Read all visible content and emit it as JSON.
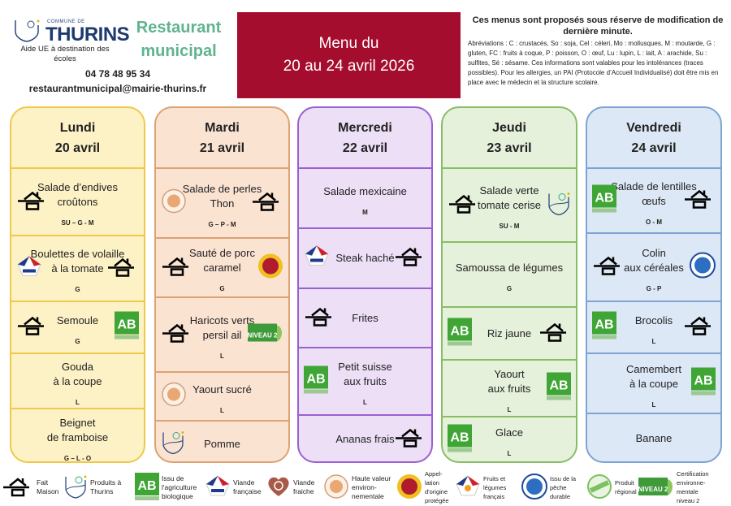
{
  "header": {
    "logo_small": "COMMUNE DE",
    "logo_name": "THURINS",
    "aide": "Aide UE à destination des écoles",
    "restaurant": "Restaurant municipal",
    "phone": "04 78 48 95 34",
    "email": "restaurantmunicipal@mairie-thurins.fr",
    "menu_line1": "Menu du",
    "menu_line2": "20 au 24 avril 2026",
    "notice_title": "Ces menus sont proposés sous réserve de modification de dernière minute.",
    "notice_body": "Abréviations : C : crustacés, So : soja, Cel : céleri, Mo : mollusques, M : moutarde, G : gluten, FC : fruits à coque, P : poisson, O : œuf, Lu : lupin, L : lait, A : arachide, Su : sulfites, Sé : sésame. Ces informations sont valables pour les intolérances (traces possibles). Pour les allergies, un PAI (Protocole d’Accueil Individualisé) doit être mis en place avec le médecin et la structure scolaire."
  },
  "colors": {
    "band": "#a50d2e",
    "restaurant": "#5fb48e",
    "lundi": "#fdf1c6",
    "mardi": "#fbe3d2",
    "mercredi": "#ecdff6",
    "jeudi": "#e6f1dc",
    "vendredi": "#dde8f6"
  },
  "days": [
    {
      "day": "Lundi",
      "date": "20 avril",
      "items": [
        {
          "name": "Salade d’endives\ncroûtons",
          "allergens": "SU – G - M",
          "icons": [
            {
              "type": "house",
              "side": "left"
            }
          ]
        },
        {
          "name": "Boulettes de volaille\nà la tomate",
          "allergens": "G",
          "icons": [
            {
              "type": "viande-francaise",
              "side": "left"
            },
            {
              "type": "house",
              "side": "right"
            }
          ]
        },
        {
          "name": "Semoule",
          "allergens": "G",
          "icons": [
            {
              "type": "house",
              "side": "left"
            },
            {
              "type": "ab",
              "side": "right"
            }
          ]
        },
        {
          "name": "Gouda\nà la coupe",
          "allergens": "L",
          "icons": []
        },
        {
          "name": "Beignet\nde framboise",
          "allergens": "G – L - O",
          "icons": []
        }
      ]
    },
    {
      "day": "Mardi",
      "date": "21 avril",
      "items": [
        {
          "name": "Salade de perles\nThon",
          "allergens": "G – P - M",
          "icons": [
            {
              "type": "hve",
              "side": "left"
            },
            {
              "type": "house",
              "side": "right"
            }
          ]
        },
        {
          "name": "Sauté de porc\ncaramel",
          "allergens": "G",
          "icons": [
            {
              "type": "house",
              "side": "left"
            },
            {
              "type": "aop",
              "side": "right"
            }
          ]
        },
        {
          "name": "Haricots verts\npersil ail",
          "allergens": "L",
          "icons": [
            {
              "type": "house",
              "side": "left"
            },
            {
              "type": "cert",
              "side": "right"
            }
          ]
        },
        {
          "name": "Yaourt sucré",
          "allergens": "L",
          "icons": [
            {
              "type": "hve",
              "side": "left"
            }
          ]
        },
        {
          "name": "Pomme",
          "allergens": "",
          "icons": [
            {
              "type": "thurins",
              "side": "left"
            }
          ]
        }
      ]
    },
    {
      "day": "Mercredi",
      "date": "22 avril",
      "items": [
        {
          "name": "Salade mexicaine",
          "allergens": "M",
          "icons": []
        },
        {
          "name": "Steak haché",
          "allergens": "",
          "icons": [
            {
              "type": "viande-francaise",
              "side": "left"
            },
            {
              "type": "house",
              "side": "right"
            }
          ]
        },
        {
          "name": "Frites",
          "allergens": "",
          "icons": [
            {
              "type": "house",
              "side": "left"
            }
          ]
        },
        {
          "name": "Petit suisse\naux fruits",
          "allergens": "L",
          "icons": [
            {
              "type": "ab",
              "side": "left"
            }
          ]
        },
        {
          "name": "Ananas frais",
          "allergens": "",
          "icons": [
            {
              "type": "house",
              "side": "right"
            }
          ]
        }
      ]
    },
    {
      "day": "Jeudi",
      "date": "23 avril",
      "items": [
        {
          "name": "Salade verte\ntomate cerise",
          "allergens": "SU - M",
          "icons": [
            {
              "type": "house",
              "side": "left"
            },
            {
              "type": "thurins",
              "side": "right"
            }
          ]
        },
        {
          "name": "Samoussa de légumes",
          "allergens": "G",
          "icons": []
        },
        {
          "name": "Riz jaune",
          "allergens": "",
          "icons": [
            {
              "type": "ab",
              "side": "left"
            },
            {
              "type": "house",
              "side": "right"
            }
          ]
        },
        {
          "name": "Yaourt\naux fruits",
          "allergens": "L",
          "icons": [
            {
              "type": "ab",
              "side": "right"
            }
          ]
        },
        {
          "name": "Glace",
          "allergens": "L",
          "icons": [
            {
              "type": "ab",
              "side": "left"
            }
          ]
        }
      ]
    },
    {
      "day": "Vendredi",
      "date": "24 avril",
      "items": [
        {
          "name": "Salade de lentilles\nœufs",
          "allergens": "O - M",
          "icons": [
            {
              "type": "ab",
              "side": "left"
            },
            {
              "type": "house",
              "side": "right"
            }
          ]
        },
        {
          "name": "Colin\naux céréales",
          "allergens": "G - P",
          "icons": [
            {
              "type": "house",
              "side": "left"
            },
            {
              "type": "peche",
              "side": "right"
            }
          ]
        },
        {
          "name": "Brocolis",
          "allergens": "L",
          "icons": [
            {
              "type": "ab",
              "side": "left"
            },
            {
              "type": "house",
              "side": "right"
            }
          ]
        },
        {
          "name": "Camembert\nà la coupe",
          "allergens": "L",
          "icons": [
            {
              "type": "ab",
              "side": "right"
            }
          ]
        },
        {
          "name": "Banane",
          "allergens": "",
          "icons": []
        }
      ]
    }
  ],
  "legend": [
    {
      "type": "house",
      "label": "Fait\nMaison"
    },
    {
      "type": "thurins",
      "label": "Produits à\nThurins"
    },
    {
      "type": "ab",
      "label": "Issu de\nl'agriculture\nbiologique"
    },
    {
      "type": "viande-francaise",
      "label": "Viande\nfrançaise"
    },
    {
      "type": "viande-fraiche",
      "label": "Viande\nfraiche"
    },
    {
      "type": "hve",
      "label": "Haute valeur\nenviron-\nnementale"
    },
    {
      "type": "aop",
      "label": "Appel-\nlation\nd'origine\nprotégée"
    },
    {
      "type": "fruits",
      "label": "Fruits et\nlégumes\nfrançais"
    },
    {
      "type": "peche",
      "label": "Issu de la\npêche\ndurable"
    },
    {
      "type": "regional",
      "label": "Produit\nrégional"
    },
    {
      "type": "cert",
      "label": "Certification\nenvironne-\nmentale\nniveau 2"
    }
  ]
}
